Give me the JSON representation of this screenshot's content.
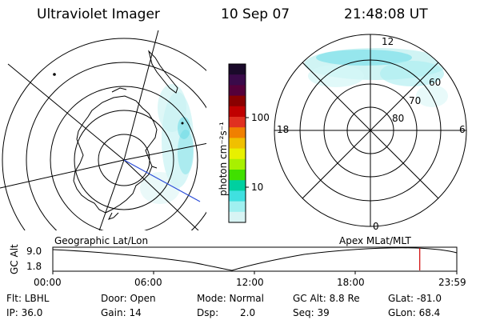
{
  "header": {
    "instrument": "Ultraviolet Imager",
    "date": "10 Sep 07",
    "time": "21:48:08 UT"
  },
  "colorbar": {
    "unit_label": "photon cm⁻²s⁻¹",
    "ticks": [
      "100",
      "10"
    ],
    "colors": [
      "#1a0a2a",
      "#3a0a4a",
      "#55003a",
      "#8a0000",
      "#c00000",
      "#e03020",
      "#f08000",
      "#f0c000",
      "#e8f000",
      "#a8f000",
      "#40e000",
      "#00d0a0",
      "#40e0e0",
      "#a0f0f0",
      "#d8f4f4"
    ]
  },
  "polar_plot": {
    "labels": {
      "top": "12",
      "left": "18",
      "right": "6",
      "bottom": "0",
      "lat60": "60",
      "lat70": "70",
      "lat80": "80"
    }
  },
  "timeline": {
    "left_label": "Geographic Lat/Lon",
    "right_label": "Apex MLat/MLT",
    "axis_label": "GC Alt",
    "y_ticks": [
      "9.0",
      "1.8"
    ],
    "x_ticks": [
      "00:00",
      "06:00",
      "12:00",
      "18:00",
      "23:59"
    ],
    "marker_color": "#d00000",
    "marker_time_hours": 21.8
  },
  "info": {
    "filter": "Flt: LBHL",
    "ip": "IP: 36.0",
    "door": "Door: Open",
    "gain": "Gain: 14",
    "mode": "Mode: Normal",
    "dsp_label": "Dsp:",
    "dsp_value": "2.0",
    "gc_alt": "GC Alt: 8.8 Re",
    "seq": "Seq: 39",
    "glat": "GLat: -81.0",
    "glon": "GLon: 68.4"
  }
}
